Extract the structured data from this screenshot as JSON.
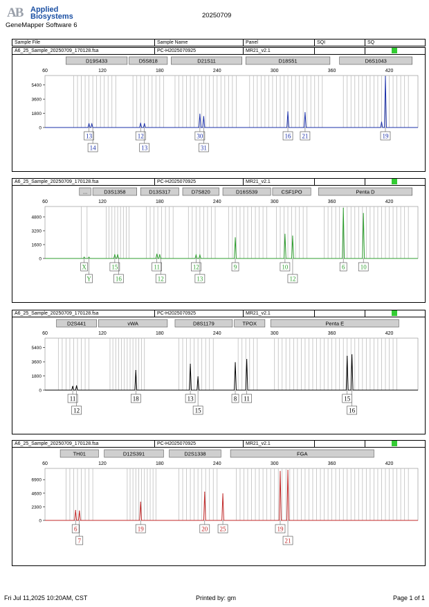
{
  "header": {
    "logo_mark": "AB",
    "logo_line1": "Applied",
    "logo_line2": "Biosystems",
    "software": "GeneMapper Software 6",
    "date": "20250709"
  },
  "columns": [
    "Sample File",
    "Sample Name",
    "Panel",
    "SQI",
    "SQ"
  ],
  "colors": {
    "blue": "#1a2fa8",
    "green": "#2e9e2e",
    "black": "#000000",
    "red": "#c02828",
    "sq": "#33cc33",
    "bin": "#bdbdbd"
  },
  "x_ticks": [
    "60",
    "120",
    "180",
    "240",
    "300",
    "360",
    "420"
  ],
  "panels": [
    {
      "sample_file": "A6_25_Sample_20250709_170128.fsa",
      "sample_name": "PC-H2025070925",
      "panel_name": "MR21_v2.1",
      "color": "#1a2fa8",
      "y_ticks": [
        "5400",
        "3600",
        "1800",
        "0"
      ],
      "y_max": 6600,
      "loci": [
        {
          "name": "D19S433",
          "from": 82,
          "to": 146
        },
        {
          "name": "D5S818",
          "from": 148,
          "to": 188
        },
        {
          "name": "D21S11",
          "from": 192,
          "to": 266
        },
        {
          "name": "D18S51",
          "from": 270,
          "to": 358
        },
        {
          "name": "D6S1043",
          "from": 368,
          "to": 444
        }
      ],
      "peaks": [
        {
          "x": 106,
          "h": 500
        },
        {
          "x": 109,
          "h": 450
        },
        {
          "x": 160,
          "h": 550
        },
        {
          "x": 164,
          "h": 500
        },
        {
          "x": 222,
          "h": 1700
        },
        {
          "x": 226,
          "h": 1400
        },
        {
          "x": 314,
          "h": 2000
        },
        {
          "x": 332,
          "h": 1900
        },
        {
          "x": 412,
          "h": 700
        },
        {
          "x": 416,
          "h": 6500
        }
      ],
      "labels": [
        {
          "text": "13",
          "x": 106,
          "row": 1
        },
        {
          "text": "14",
          "x": 110,
          "row": 2
        },
        {
          "text": "12",
          "x": 160,
          "row": 1
        },
        {
          "text": "13",
          "x": 164,
          "row": 2
        },
        {
          "text": "30",
          "x": 222,
          "row": 1
        },
        {
          "text": "31",
          "x": 226,
          "row": 2
        },
        {
          "text": "16",
          "x": 314,
          "row": 1
        },
        {
          "text": "21",
          "x": 332,
          "row": 1
        },
        {
          "text": "19",
          "x": 416,
          "row": 1
        }
      ],
      "bins": [
        90,
        94,
        98,
        102,
        106,
        110,
        114,
        118,
        122,
        126,
        130,
        134,
        152,
        156,
        160,
        164,
        168,
        172,
        176,
        180,
        184,
        196,
        200,
        204,
        208,
        212,
        216,
        220,
        224,
        228,
        232,
        236,
        240,
        244,
        248,
        252,
        256,
        260,
        274,
        278,
        282,
        286,
        290,
        294,
        298,
        302,
        306,
        310,
        314,
        318,
        322,
        326,
        330,
        334,
        338,
        342,
        346,
        350,
        372,
        376,
        380,
        384,
        388,
        392,
        396,
        400,
        404,
        408,
        412,
        416,
        420,
        424,
        428,
        432,
        436,
        440
      ]
    },
    {
      "sample_file": "A6_25_Sample_20250709_170128.fsa",
      "sample_name": "PC-H2025070925",
      "panel_name": "MR21_v2.1",
      "color": "#2e9e2e",
      "y_ticks": [
        "4800",
        "3200",
        "1600",
        "0"
      ],
      "y_max": 6000,
      "loci": [
        {
          "name": "...",
          "from": 96,
          "to": 108
        },
        {
          "name": "D3S1358",
          "from": 110,
          "to": 156
        },
        {
          "name": "D13S317",
          "from": 160,
          "to": 200
        },
        {
          "name": "D7S820",
          "from": 204,
          "to": 242
        },
        {
          "name": "D16S539",
          "from": 246,
          "to": 296
        },
        {
          "name": "CSF1PO",
          "from": 298,
          "to": 338
        },
        {
          "name": "Penta D",
          "from": 346,
          "to": 444
        }
      ],
      "peaks": [
        {
          "x": 101,
          "h": 150
        },
        {
          "x": 106,
          "h": 150
        },
        {
          "x": 133,
          "h": 450
        },
        {
          "x": 136,
          "h": 450
        },
        {
          "x": 177,
          "h": 500
        },
        {
          "x": 180,
          "h": 450
        },
        {
          "x": 218,
          "h": 400
        },
        {
          "x": 222,
          "h": 400
        },
        {
          "x": 259,
          "h": 2400
        },
        {
          "x": 311,
          "h": 2800
        },
        {
          "x": 319,
          "h": 2600
        },
        {
          "x": 372,
          "h": 5800
        },
        {
          "x": 393,
          "h": 5200
        }
      ],
      "labels": [
        {
          "text": "X",
          "x": 101,
          "row": 1
        },
        {
          "text": "Y",
          "x": 106,
          "row": 2
        },
        {
          "text": "15",
          "x": 133,
          "row": 1
        },
        {
          "text": "16",
          "x": 137,
          "row": 2
        },
        {
          "text": "11",
          "x": 177,
          "row": 1
        },
        {
          "text": "12",
          "x": 181,
          "row": 2
        },
        {
          "text": "12",
          "x": 218,
          "row": 1
        },
        {
          "text": "13",
          "x": 222,
          "row": 2
        },
        {
          "text": "9",
          "x": 259,
          "row": 1
        },
        {
          "text": "10",
          "x": 311,
          "row": 1
        },
        {
          "text": "12",
          "x": 319,
          "row": 2
        },
        {
          "text": "6",
          "x": 372,
          "row": 1
        },
        {
          "text": "10",
          "x": 393,
          "row": 1
        }
      ],
      "bins": [
        98,
        104,
        124,
        127,
        130,
        133,
        136,
        139,
        142,
        145,
        148,
        166,
        170,
        174,
        178,
        182,
        186,
        190,
        194,
        210,
        214,
        218,
        222,
        226,
        230,
        234,
        238,
        252,
        256,
        260,
        264,
        268,
        272,
        276,
        280,
        284,
        288,
        292,
        302,
        306,
        310,
        314,
        318,
        322,
        326,
        330,
        334,
        352,
        356,
        360,
        364,
        368,
        372,
        376,
        380,
        384,
        388,
        392,
        396,
        400,
        404,
        408,
        412,
        416,
        420,
        424,
        428,
        432,
        436,
        440
      ]
    },
    {
      "sample_file": "A6_25_Sample_20250709_170128.fsa",
      "sample_name": "PC-H2025070925",
      "panel_name": "MR21_v2.1",
      "color": "#000000",
      "y_ticks": [
        "5400",
        "3600",
        "1800",
        "0"
      ],
      "y_max": 6600,
      "loci": [
        {
          "name": "D2S441",
          "from": 72,
          "to": 114
        },
        {
          "name": "vWA",
          "from": 116,
          "to": 188
        },
        {
          "name": "D8S1179",
          "from": 196,
          "to": 256
        },
        {
          "name": "TPOX",
          "from": 258,
          "to": 290
        },
        {
          "name": "Penta E",
          "from": 296,
          "to": 430
        }
      ],
      "peaks": [
        {
          "x": 89,
          "h": 500
        },
        {
          "x": 93,
          "h": 550
        },
        {
          "x": 155,
          "h": 2500
        },
        {
          "x": 212,
          "h": 3300
        },
        {
          "x": 220,
          "h": 1700
        },
        {
          "x": 259,
          "h": 3500
        },
        {
          "x": 271,
          "h": 3900
        },
        {
          "x": 376,
          "h": 4300
        },
        {
          "x": 381,
          "h": 4500
        }
      ],
      "labels": [
        {
          "text": "11",
          "x": 89,
          "row": 1
        },
        {
          "text": "12",
          "x": 93,
          "row": 2
        },
        {
          "text": "18",
          "x": 155,
          "row": 1
        },
        {
          "text": "13",
          "x": 212,
          "row": 1
        },
        {
          "text": "15",
          "x": 220,
          "row": 2
        },
        {
          "text": "8",
          "x": 259,
          "row": 1
        },
        {
          "text": "11",
          "x": 271,
          "row": 1
        },
        {
          "text": "15",
          "x": 376,
          "row": 1
        },
        {
          "text": "16",
          "x": 381,
          "row": 2
        }
      ],
      "bins": [
        74,
        78,
        82,
        86,
        90,
        94,
        98,
        102,
        106,
        128,
        131,
        134,
        137,
        140,
        143,
        146,
        149,
        152,
        155,
        158,
        161,
        164,
        200,
        204,
        208,
        212,
        216,
        220,
        224,
        228,
        232,
        236,
        262,
        266,
        270,
        274,
        278,
        282,
        300,
        304,
        308,
        312,
        316,
        320,
        324,
        328,
        332,
        336,
        340,
        344,
        348,
        352,
        356,
        360,
        364,
        368,
        372,
        376,
        380,
        384,
        388,
        392,
        396,
        400,
        404,
        408,
        412,
        416,
        420,
        424,
        428
      ]
    },
    {
      "sample_file": "A6_25_Sample_20250709_170128.fsa",
      "sample_name": "PC-H2025070925",
      "panel_name": "MR21_v2.1",
      "color": "#c02828",
      "y_ticks": [
        "6900",
        "4600",
        "2300",
        "0"
      ],
      "y_max": 8800,
      "loci": [
        {
          "name": "TH01",
          "from": 76,
          "to": 116
        },
        {
          "name": "D12S391",
          "from": 122,
          "to": 184
        },
        {
          "name": "D2S1338",
          "from": 190,
          "to": 244
        },
        {
          "name": "FGA",
          "from": 254,
          "to": 404
        }
      ],
      "peaks": [
        {
          "x": 92,
          "h": 1700
        },
        {
          "x": 96,
          "h": 1600
        },
        {
          "x": 160,
          "h": 3100
        },
        {
          "x": 227,
          "h": 4800
        },
        {
          "x": 246,
          "h": 4500
        },
        {
          "x": 306,
          "h": 8300
        },
        {
          "x": 314,
          "h": 8500
        }
      ],
      "labels": [
        {
          "text": "6",
          "x": 92,
          "row": 1
        },
        {
          "text": "7",
          "x": 96,
          "row": 2
        },
        {
          "text": "19",
          "x": 160,
          "row": 1
        },
        {
          "text": "20",
          "x": 227,
          "row": 1
        },
        {
          "text": "25",
          "x": 246,
          "row": 1
        },
        {
          "text": "19",
          "x": 306,
          "row": 1
        },
        {
          "text": "21",
          "x": 314,
          "row": 2
        }
      ],
      "bins": [
        82,
        86,
        90,
        94,
        98,
        102,
        106,
        110,
        146,
        149,
        152,
        155,
        158,
        161,
        164,
        167,
        170,
        173,
        176,
        200,
        204,
        208,
        212,
        216,
        220,
        224,
        228,
        232,
        236,
        240,
        260,
        264,
        268,
        272,
        276,
        280,
        284,
        288,
        292,
        296,
        300,
        304,
        308,
        312,
        316,
        320,
        324,
        328,
        332,
        336,
        340,
        344,
        348,
        352,
        356,
        360,
        364,
        368,
        372,
        376,
        380,
        384,
        388,
        392,
        396,
        400,
        404,
        408,
        412,
        416,
        420,
        424,
        428,
        432,
        436,
        440
      ]
    }
  ],
  "footer": {
    "printed_at": "Fri Jul 11,2025 10:20AM, CST",
    "printed_by": "Printed by: gm",
    "page": "Page 1 of 1"
  }
}
